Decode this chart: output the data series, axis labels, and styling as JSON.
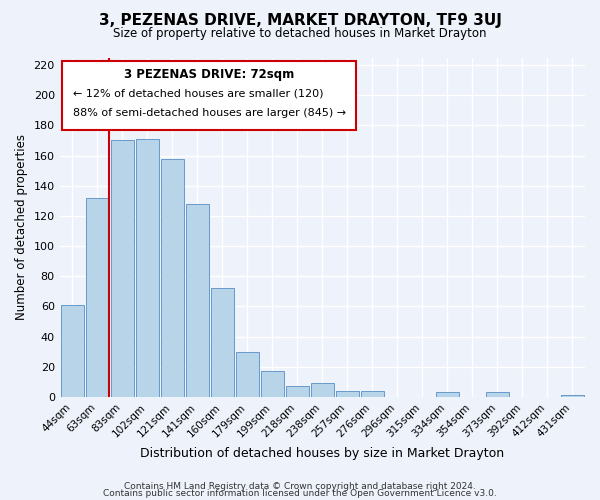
{
  "title": "3, PEZENAS DRIVE, MARKET DRAYTON, TF9 3UJ",
  "subtitle": "Size of property relative to detached houses in Market Drayton",
  "xlabel": "Distribution of detached houses by size in Market Drayton",
  "ylabel": "Number of detached properties",
  "bar_labels": [
    "44sqm",
    "63sqm",
    "83sqm",
    "102sqm",
    "121sqm",
    "141sqm",
    "160sqm",
    "179sqm",
    "199sqm",
    "218sqm",
    "238sqm",
    "257sqm",
    "276sqm",
    "296sqm",
    "315sqm",
    "334sqm",
    "354sqm",
    "373sqm",
    "392sqm",
    "412sqm",
    "431sqm"
  ],
  "bar_values": [
    61,
    132,
    170,
    171,
    158,
    128,
    72,
    30,
    17,
    7,
    9,
    4,
    4,
    0,
    0,
    3,
    0,
    3,
    0,
    0,
    1
  ],
  "bar_color": "#b8d4e8",
  "bar_edge_color": "#6699cc",
  "highlight_line_color": "#cc0000",
  "annotation_title": "3 PEZENAS DRIVE: 72sqm",
  "annotation_line1": "← 12% of detached houses are smaller (120)",
  "annotation_line2": "88% of semi-detached houses are larger (845) →",
  "annotation_box_color": "#ffffff",
  "annotation_box_edge": "#cc0000",
  "ylim": [
    0,
    225
  ],
  "yticks": [
    0,
    20,
    40,
    60,
    80,
    100,
    120,
    140,
    160,
    180,
    200,
    220
  ],
  "footer1": "Contains HM Land Registry data © Crown copyright and database right 2024.",
  "footer2": "Contains public sector information licensed under the Open Government Licence v3.0.",
  "background_color": "#eef2fb",
  "grid_color": "#ffffff"
}
